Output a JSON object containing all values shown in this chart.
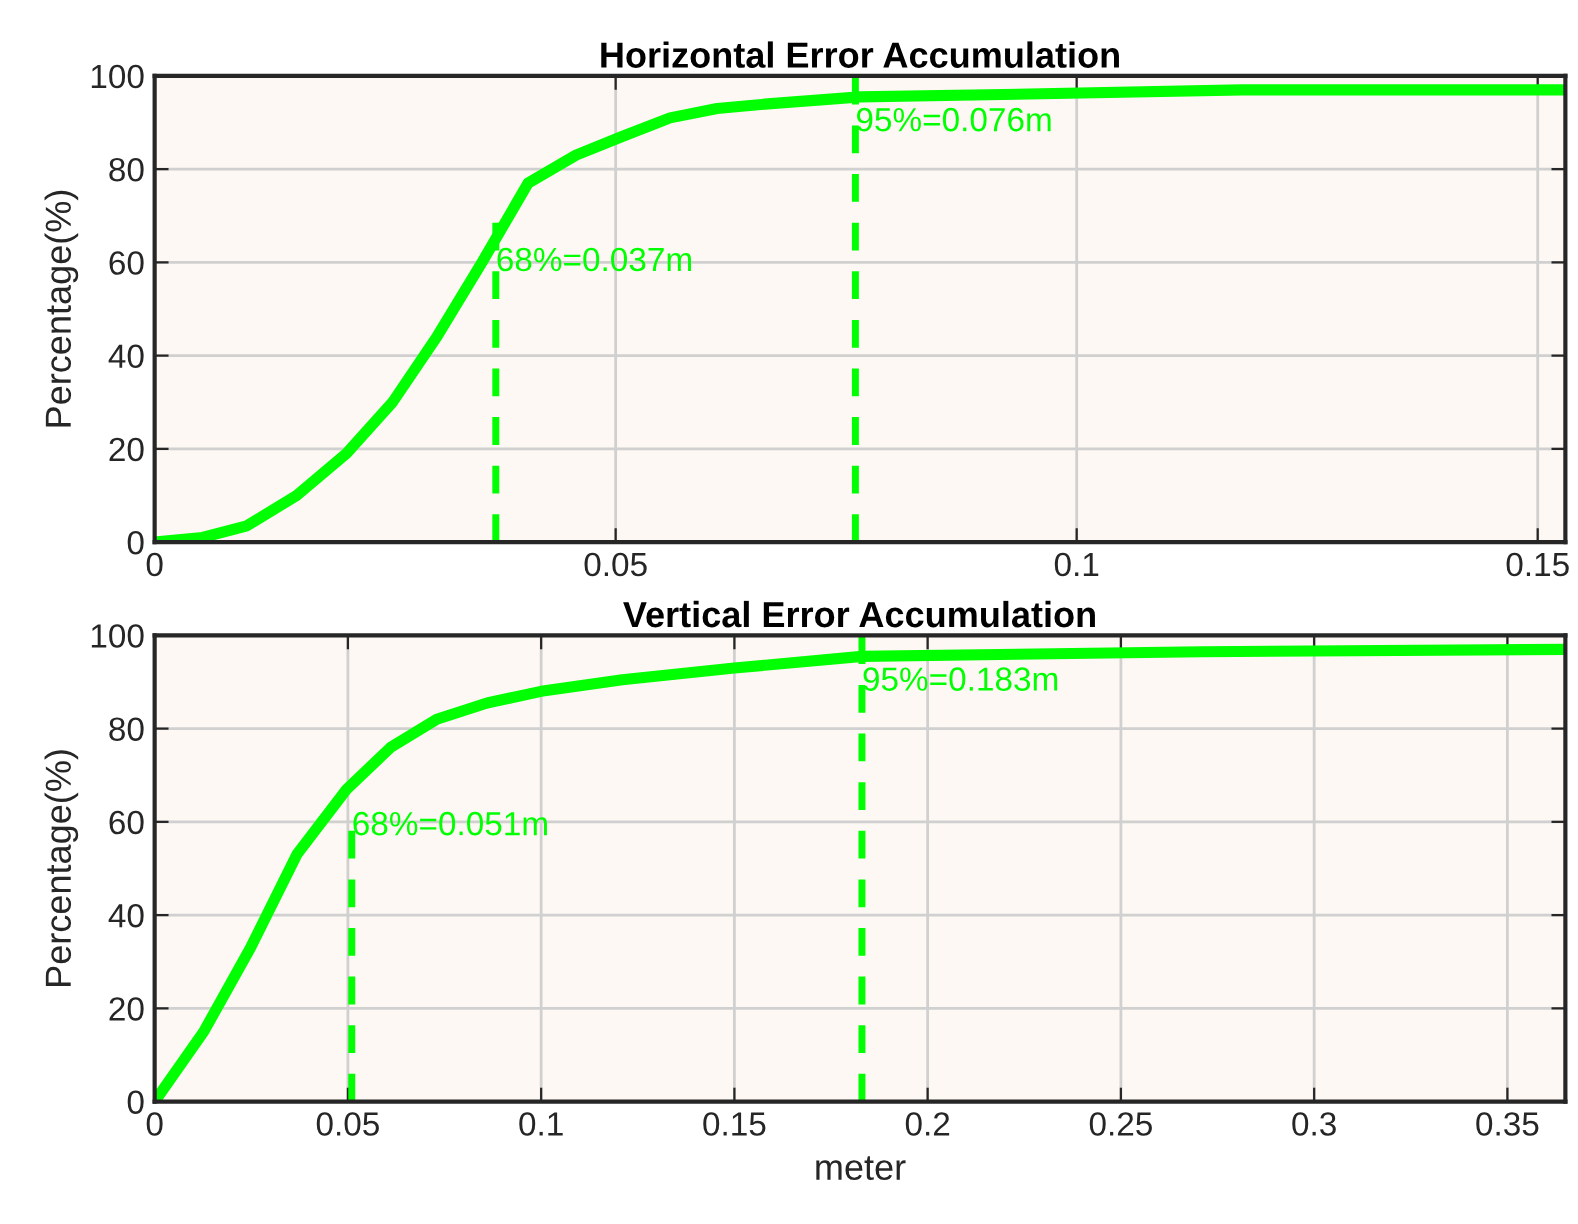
{
  "chart_data": [
    {
      "type": "line",
      "title": "Horizontal Error Accumulation",
      "ylabel": "Percentage(%)",
      "series": [
        {
          "color": "#00ff00",
          "x": [
            0,
            0.0052,
            0.01,
            0.0154,
            0.0208,
            0.0258,
            0.0306,
            0.0355,
            0.0405,
            0.0457,
            0.0507,
            0.0559,
            0.061,
            0.0665,
            0.0765,
            0.092,
            0.118,
            0.153
          ],
          "values": [
            0,
            1,
            3.5,
            10,
            19,
            30,
            44,
            60,
            77,
            83,
            87,
            91,
            93,
            94,
            95.5,
            96,
            97,
            97
          ]
        },
        {
          "color": "#00ff00",
          "line_style": "dashed",
          "x": [
            0.037,
            0.037
          ],
          "values": [
            0,
            70
          ]
        },
        {
          "color": "#00ff00",
          "line_style": "dashed",
          "x": [
            0.076,
            0.076
          ],
          "values": [
            0,
            100
          ]
        }
      ],
      "annotations": [
        {
          "text": "68%=0.037m",
          "x": 0.037,
          "y": 60
        },
        {
          "text": "95%=0.076m",
          "x": 0.076,
          "y": 90
        }
      ],
      "xlim": [
        0,
        0.153
      ],
      "xticks": [
        0,
        0.05,
        0.1,
        0.15
      ],
      "ylim": [
        0,
        100
      ],
      "yticks": [
        0,
        20,
        40,
        60,
        80,
        100
      ],
      "grid": true
    },
    {
      "type": "line",
      "title": "Vertical Error Accumulation",
      "ylabel": "Percentage(%)",
      "xlabel": "meter",
      "series": [
        {
          "color": "#00ff00",
          "x": [
            0,
            0.0127,
            0.0248,
            0.0368,
            0.0497,
            0.0611,
            0.073,
            0.086,
            0.1,
            0.121,
            0.15,
            0.183,
            0.271,
            0.365
          ],
          "values": [
            0,
            15,
            33,
            53,
            67,
            76,
            82,
            85.5,
            88,
            90.5,
            93,
            95.5,
            96.5,
            97
          ]
        },
        {
          "color": "#00ff00",
          "line_style": "dashed",
          "x": [
            0.051,
            0.051
          ],
          "values": [
            0,
            60
          ]
        },
        {
          "color": "#00ff00",
          "line_style": "dashed",
          "x": [
            0.183,
            0.183
          ],
          "values": [
            0,
            100
          ]
        }
      ],
      "annotations": [
        {
          "text": "68%=0.051m",
          "x": 0.051,
          "y": 59
        },
        {
          "text": "95%=0.183m",
          "x": 0.183,
          "y": 90
        }
      ],
      "xlim": [
        0,
        0.365
      ],
      "xticks": [
        0,
        0.05,
        0.1,
        0.15,
        0.2,
        0.25,
        0.3,
        0.35
      ],
      "ylim": [
        0,
        100
      ],
      "yticks": [
        0,
        20,
        40,
        60,
        80,
        100
      ],
      "grid": true
    }
  ]
}
